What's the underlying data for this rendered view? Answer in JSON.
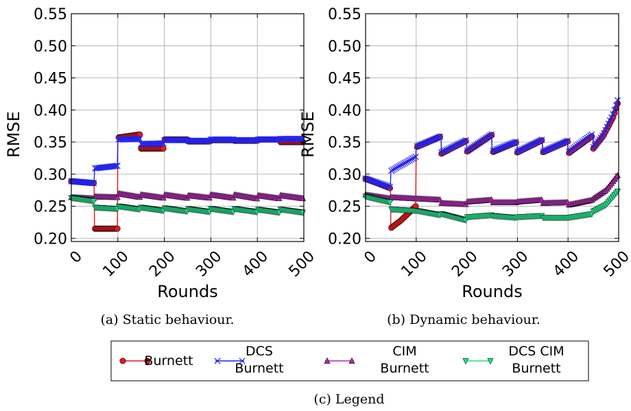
{
  "chart_data": [
    {
      "type": "line",
      "caption": "(a) Static behaviour.",
      "xlabel": "Rounds",
      "ylabel": "RMSE",
      "xlim": [
        0,
        500
      ],
      "ylim": [
        0.195,
        0.55
      ],
      "xticks": [
        "0",
        "100",
        "200",
        "300",
        "400",
        "500"
      ],
      "yticks": [
        "0.20",
        "0.25",
        "0.30",
        "0.35",
        "0.40",
        "0.45",
        "0.50",
        "0.55"
      ],
      "grid": true,
      "series": [
        {
          "name": "Burnett",
          "color": "#e41a1c",
          "marker": "circle",
          "x": [
            0,
            49,
            50,
            99,
            100,
            149,
            150,
            199,
            200,
            249,
            250,
            299,
            300,
            349,
            350,
            399,
            400,
            449,
            450,
            500
          ],
          "y": [
            0.289,
            0.286,
            0.215,
            0.215,
            0.357,
            0.362,
            0.34,
            0.34,
            0.354,
            0.354,
            0.351,
            0.351,
            0.353,
            0.353,
            0.352,
            0.352,
            0.354,
            0.354,
            0.35,
            0.35
          ]
        },
        {
          "name": "DCS Burnett",
          "color": "#2222ee",
          "marker": "x",
          "x": [
            0,
            49,
            50,
            99,
            100,
            149,
            150,
            199,
            200,
            249,
            250,
            299,
            300,
            349,
            350,
            399,
            400,
            449,
            450,
            500
          ],
          "y": [
            0.289,
            0.286,
            0.309,
            0.313,
            0.354,
            0.355,
            0.347,
            0.348,
            0.353,
            0.353,
            0.352,
            0.352,
            0.354,
            0.354,
            0.353,
            0.353,
            0.354,
            0.354,
            0.355,
            0.355
          ]
        },
        {
          "name": "CIM Burnett",
          "color": "#aa2aaa",
          "marker": "triangle-up",
          "x": [
            0,
            49,
            50,
            99,
            100,
            149,
            150,
            199,
            200,
            249,
            250,
            299,
            300,
            349,
            350,
            399,
            400,
            449,
            450,
            500
          ],
          "y": [
            0.264,
            0.262,
            0.265,
            0.264,
            0.27,
            0.264,
            0.268,
            0.263,
            0.268,
            0.263,
            0.267,
            0.263,
            0.268,
            0.263,
            0.268,
            0.262,
            0.267,
            0.262,
            0.267,
            0.262
          ]
        },
        {
          "name": "DCS CIM Burnett",
          "color": "#22dd88",
          "marker": "triangle-down",
          "x": [
            0,
            49,
            50,
            99,
            100,
            149,
            150,
            199,
            200,
            249,
            250,
            299,
            300,
            349,
            350,
            399,
            400,
            449,
            450,
            500
          ],
          "y": [
            0.263,
            0.258,
            0.248,
            0.246,
            0.25,
            0.245,
            0.248,
            0.243,
            0.247,
            0.242,
            0.246,
            0.241,
            0.246,
            0.241,
            0.246,
            0.241,
            0.245,
            0.24,
            0.245,
            0.24
          ]
        }
      ]
    },
    {
      "type": "line",
      "caption": "(b) Dynamic behaviour.",
      "xlabel": "Rounds",
      "ylabel": "RMSE",
      "xlim": [
        0,
        500
      ],
      "ylim": [
        0.195,
        0.55
      ],
      "xticks": [
        "0",
        "100",
        "200",
        "300",
        "400",
        "500"
      ],
      "yticks": [
        "0.20",
        "0.25",
        "0.30",
        "0.35",
        "0.40",
        "0.45",
        "0.50",
        "0.55"
      ],
      "grid": true,
      "series": [
        {
          "name": "Burnett",
          "color": "#e41a1c",
          "marker": "circle",
          "x": [
            0,
            49,
            50,
            70,
            99,
            100,
            149,
            150,
            199,
            200,
            249,
            250,
            299,
            300,
            349,
            350,
            399,
            400,
            449,
            450,
            470,
            490,
            500
          ],
          "y": [
            0.293,
            0.278,
            0.216,
            0.228,
            0.25,
            0.342,
            0.359,
            0.332,
            0.352,
            0.335,
            0.361,
            0.334,
            0.35,
            0.334,
            0.353,
            0.334,
            0.351,
            0.332,
            0.36,
            0.34,
            0.36,
            0.39,
            0.415
          ]
        },
        {
          "name": "DCS Burnett",
          "color": "#2222ee",
          "marker": "x",
          "x": [
            0,
            49,
            50,
            99,
            100,
            149,
            150,
            199,
            200,
            249,
            250,
            299,
            300,
            349,
            350,
            399,
            400,
            449,
            450,
            470,
            490,
            500
          ],
          "y": [
            0.293,
            0.28,
            0.305,
            0.327,
            0.343,
            0.359,
            0.334,
            0.353,
            0.336,
            0.362,
            0.336,
            0.351,
            0.335,
            0.354,
            0.335,
            0.352,
            0.334,
            0.363,
            0.342,
            0.362,
            0.395,
            0.42
          ]
        },
        {
          "name": "CIM Burnett",
          "color": "#aa2aaa",
          "marker": "triangle-up",
          "x": [
            0,
            49,
            50,
            99,
            100,
            149,
            150,
            199,
            200,
            249,
            250,
            299,
            300,
            349,
            350,
            399,
            400,
            449,
            450,
            475,
            500
          ],
          "y": [
            0.268,
            0.262,
            0.264,
            0.262,
            0.262,
            0.26,
            0.255,
            0.253,
            0.257,
            0.26,
            0.256,
            0.256,
            0.257,
            0.26,
            0.255,
            0.256,
            0.252,
            0.26,
            0.262,
            0.275,
            0.3
          ]
        },
        {
          "name": "DCS CIM Burnett",
          "color": "#22dd88",
          "marker": "triangle-down",
          "x": [
            0,
            49,
            50,
            99,
            100,
            149,
            150,
            199,
            200,
            249,
            250,
            299,
            300,
            349,
            350,
            399,
            400,
            449,
            450,
            475,
            500
          ],
          "y": [
            0.265,
            0.256,
            0.245,
            0.243,
            0.243,
            0.236,
            0.238,
            0.228,
            0.233,
            0.236,
            0.235,
            0.232,
            0.233,
            0.235,
            0.232,
            0.232,
            0.232,
            0.238,
            0.242,
            0.252,
            0.275
          ]
        }
      ]
    }
  ],
  "legend": {
    "caption": "(c) Legend",
    "entries": [
      {
        "line1": "Burnett",
        "line2": ""
      },
      {
        "line1": "DCS",
        "line2": "Burnett"
      },
      {
        "line1": "CIM",
        "line2": "Burnett"
      },
      {
        "line1": "DCS CIM",
        "line2": "Burnett"
      }
    ]
  }
}
